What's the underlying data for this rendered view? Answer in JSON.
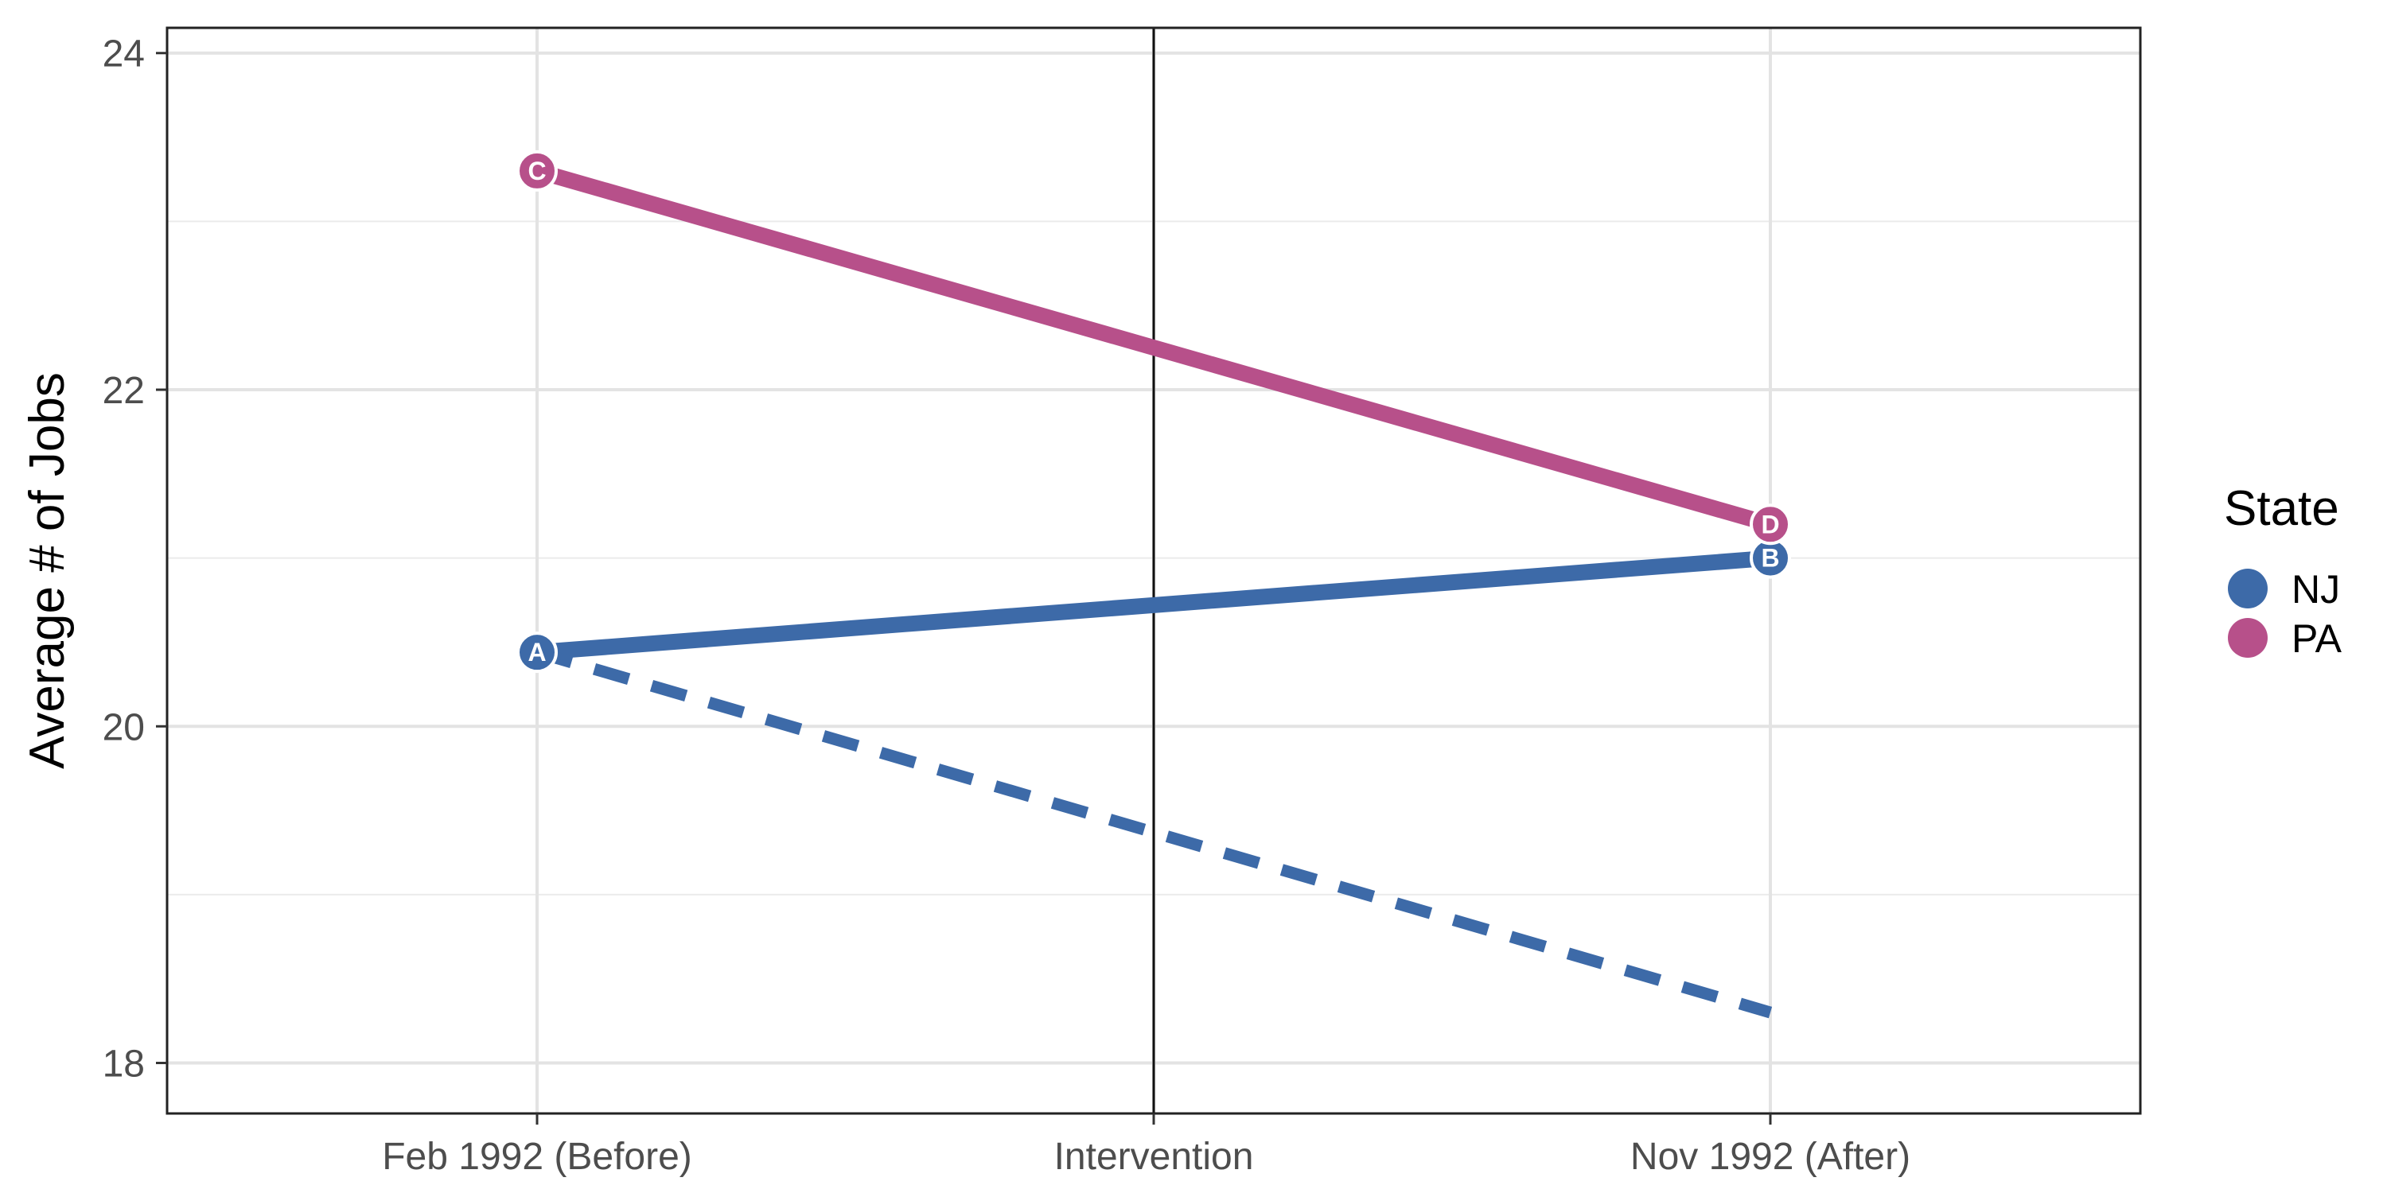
{
  "chart_data": {
    "type": "line",
    "title": "",
    "xlabel": "",
    "ylabel": "Average # of Jobs",
    "categories": [
      "Feb 1992 (Before)",
      "Intervention",
      "Nov 1992 (After)"
    ],
    "x": [
      0,
      1,
      2
    ],
    "ylim": [
      17.7,
      24.15
    ],
    "xlim": [
      -0.6,
      2.6
    ],
    "y_ticks": [
      18,
      20,
      22,
      24
    ],
    "grid": true,
    "intervention_line_x": 1,
    "legend": {
      "title": "State",
      "placement": "right",
      "entries": [
        {
          "label": "NJ",
          "color": "#3d6aa8"
        },
        {
          "label": "PA",
          "color": "#b7508a"
        }
      ]
    },
    "series": [
      {
        "name": "NJ",
        "color": "#3d6aa8",
        "style": "solid",
        "points": [
          {
            "x": 0,
            "y": 20.44,
            "label": "A"
          },
          {
            "x": 2,
            "y": 21.0,
            "label": "B"
          }
        ]
      },
      {
        "name": "PA",
        "color": "#b7508a",
        "style": "solid",
        "points": [
          {
            "x": 0,
            "y": 23.3,
            "label": "C"
          },
          {
            "x": 2,
            "y": 21.2,
            "label": "D"
          }
        ]
      },
      {
        "name": "NJ",
        "color": "#3d6aa8",
        "style": "dashed",
        "points": [
          {
            "x": 0,
            "y": 20.44
          },
          {
            "x": 2,
            "y": 18.3
          }
        ]
      }
    ]
  }
}
